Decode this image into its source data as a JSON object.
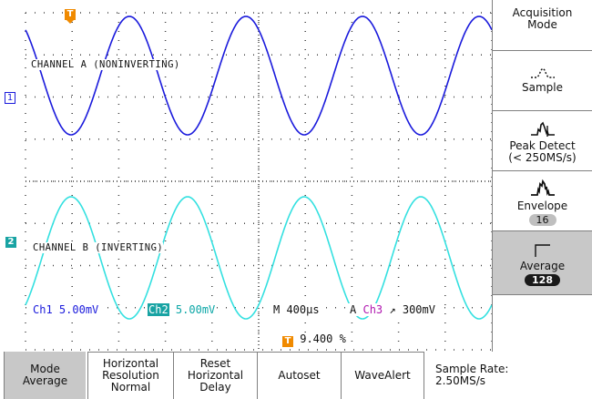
{
  "display": {
    "ch1_label": "CHANNEL A (NONINVERTING)",
    "ch2_label": "CHANNEL B (INVERTING)",
    "ch1_marker": "1",
    "ch2_marker": "2",
    "trigger_marker": "T",
    "readout": {
      "ch1_name": "Ch1",
      "ch1_scale": "5.00mV",
      "ch2_name": "Ch2",
      "ch2_scale": "5.00mV",
      "timebase": "M 400µs",
      "delta": "A",
      "trigger_source": "Ch3",
      "trigger_slope": "↗",
      "trigger_level": "300mV",
      "trigger_position": "9.400 %"
    },
    "colors": {
      "ch1": "#1a1adc",
      "ch2": "#33e0e0",
      "trigger": "#f08a00"
    }
  },
  "side_menu": {
    "title_line1": "Acquisition",
    "title_line2": "Mode",
    "items": [
      {
        "label": "Sample",
        "icon": "sample-waveform-icon"
      },
      {
        "label_line1": "Peak Detect",
        "label_line2": "(< 250MS/s)",
        "icon": "peak-detect-icon"
      },
      {
        "label": "Envelope",
        "value": "16",
        "icon": "envelope-icon"
      },
      {
        "label": "Average",
        "value": "128",
        "icon": "average-icon"
      }
    ]
  },
  "bottom_menu": {
    "mode_line1": "Mode",
    "mode_line2": "Average",
    "hres_line1": "Horizontal",
    "hres_line2": "Resolution",
    "hres_line3": "Normal",
    "reset_line1": "Reset",
    "reset_line2": "Horizontal",
    "reset_line3": "Delay",
    "autoset": "Autoset",
    "wavealert": "WaveAlert",
    "rate_line1": "Sample Rate:",
    "rate_line2": "2.50MS/s"
  }
}
